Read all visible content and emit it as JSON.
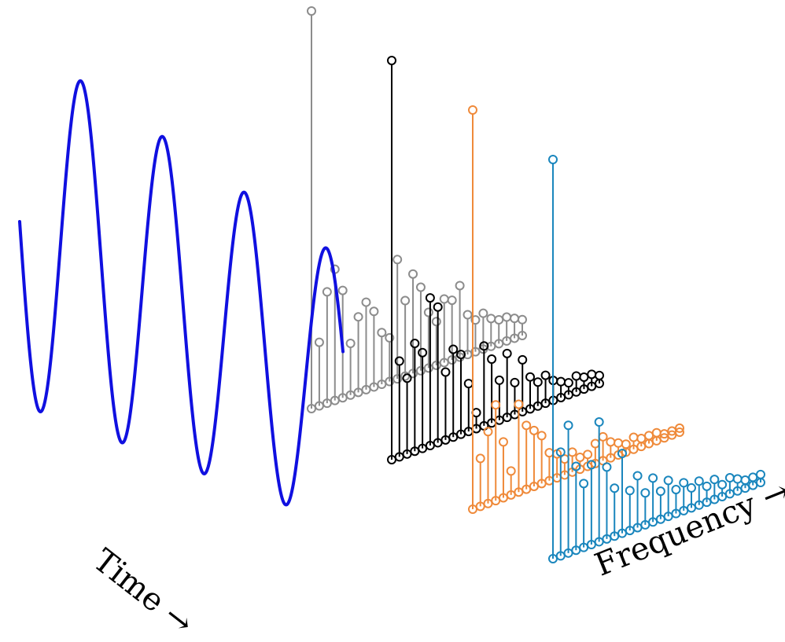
{
  "labels": {
    "time": "Time →",
    "frequency": "Frequency →"
  },
  "colors": {
    "signal": "#1010e0",
    "spectrum_gray": "#8c8c8c",
    "spectrum_black": "#000000",
    "spectrum_orange": "#ef8a3a",
    "spectrum_blue": "#1a86bd"
  },
  "spectra": [
    {
      "name": "",
      "color_key": "spectrum_gray",
      "values": [
        1.0,
        0.16,
        0.28,
        0.33,
        0.27,
        0.13,
        0.19,
        0.22,
        0.19,
        0.13,
        0.11,
        0.3,
        0.19,
        0.25,
        0.21,
        0.14,
        0.11,
        0.16,
        0.15,
        0.18,
        0.1,
        0.08,
        0.09,
        0.07,
        0.06,
        0.06,
        0.05,
        0.04
      ]
    },
    {
      "name": "",
      "color_key": "spectrum_black",
      "values": [
        1.0,
        0.24,
        0.19,
        0.27,
        0.24,
        0.37,
        0.34,
        0.17,
        0.22,
        0.2,
        0.12,
        0.04,
        0.2,
        0.16,
        0.1,
        0.16,
        0.08,
        0.13,
        0.08,
        0.06,
        0.07,
        0.05,
        0.04,
        0.03,
        0.04,
        0.03,
        0.03,
        0.02
      ]
    },
    {
      "name": "",
      "color_key": "spectrum_orange",
      "values": [
        1.0,
        0.12,
        0.18,
        0.24,
        0.14,
        0.06,
        0.22,
        0.16,
        0.14,
        0.12,
        0.07,
        0.06,
        0.04,
        0.05,
        0.03,
        0.03,
        0.05,
        0.06,
        0.04,
        0.03,
        0.02,
        0.03,
        0.02,
        0.02,
        0.02,
        0.01,
        0.01,
        0.01
      ]
    },
    {
      "name": "",
      "color_key": "spectrum_blue",
      "values": [
        1.0,
        0.26,
        0.32,
        0.21,
        0.16,
        0.2,
        0.3,
        0.18,
        0.12,
        0.2,
        0.1,
        0.13,
        0.08,
        0.11,
        0.07,
        0.09,
        0.06,
        0.07,
        0.05,
        0.06,
        0.04,
        0.05,
        0.03,
        0.04,
        0.03,
        0.02,
        0.02,
        0.02
      ]
    }
  ]
}
